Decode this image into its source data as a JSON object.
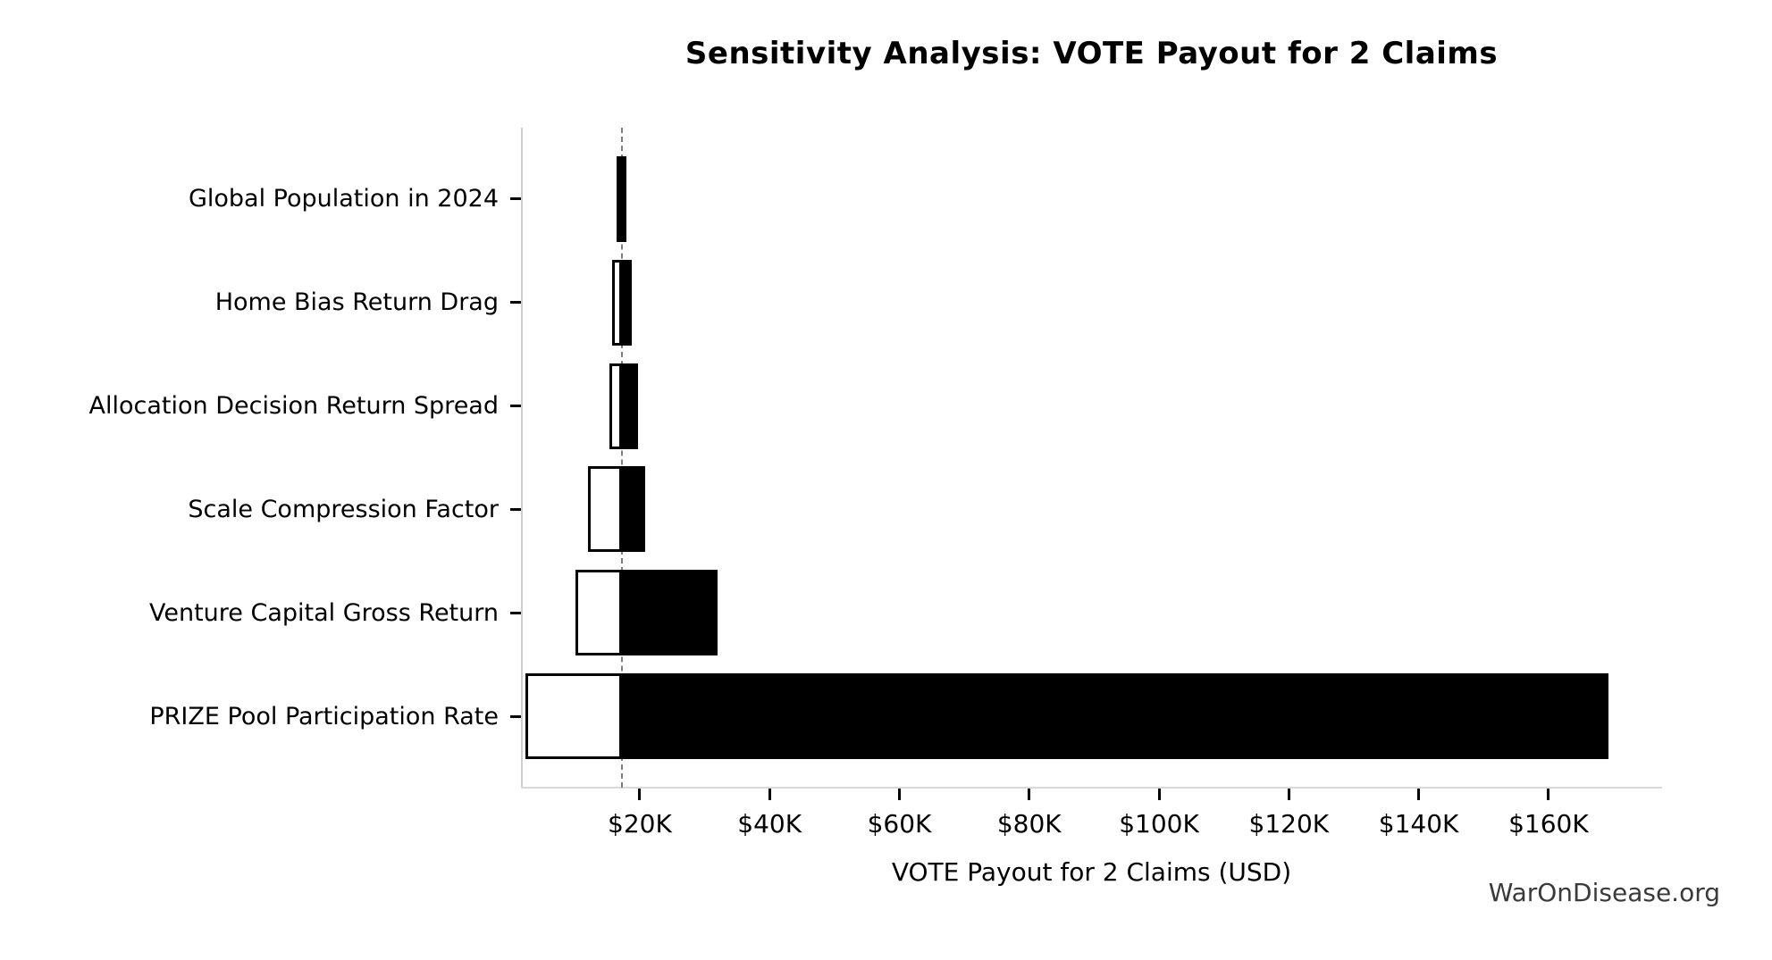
{
  "title": "Sensitivity Analysis: VOTE Payout for 2 Claims",
  "watermark": "WarOnDisease.org",
  "chart_data": {
    "type": "bar",
    "subtype": "tornado-horizontal",
    "title": "Sensitivity Analysis: VOTE Payout for 2 Claims",
    "xlabel": "VOTE Payout for 2 Claims (USD)",
    "ylabel": "",
    "categories": [
      "Global Population in 2024",
      "Home Bias Return Drag",
      "Allocation Decision Return Spread",
      "Scale Compression Factor",
      "Venture Capital Gross Return",
      "PRIZE Pool Participation Rate"
    ],
    "baseline_value": 17200,
    "series": [
      {
        "name": "low_case",
        "values": [
          16400,
          15800,
          15300,
          12000,
          10100,
          2400
        ]
      },
      {
        "name": "high_case",
        "values": [
          17900,
          18800,
          19800,
          20800,
          32000,
          169200
        ]
      }
    ],
    "xlim": [
      1700,
      177500
    ],
    "xticks": {
      "values": [
        20000,
        40000,
        60000,
        80000,
        100000,
        120000,
        140000,
        160000
      ],
      "labels": [
        "$20K",
        "$40K",
        "$60K",
        "$80K",
        "$100K",
        "$120K",
        "$140K",
        "$160K"
      ]
    },
    "grid": false,
    "legend": "none",
    "colors": {
      "low_fill": "#ffffff",
      "high_fill": "#000000",
      "bar_edge": "#000000",
      "baseline_line": "#7f7f7f",
      "axis_spine": "#cfcfcf"
    }
  }
}
